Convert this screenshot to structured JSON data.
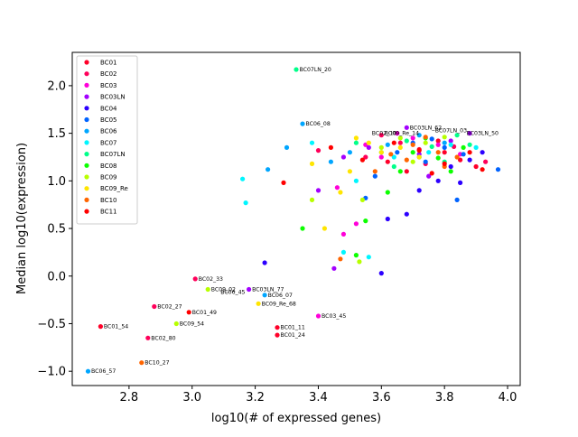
{
  "chart_data": {
    "type": "scatter",
    "title": "",
    "xlabel": "log10(# of expressed genes)",
    "ylabel": "Median log10(expression)",
    "xlim": [
      2.62,
      4.04
    ],
    "ylim": [
      -1.15,
      2.35
    ],
    "xticks": [
      "2.8",
      "3.0",
      "3.2",
      "3.4",
      "3.6",
      "3.8",
      "4.0"
    ],
    "xtick_values": [
      2.8,
      3.0,
      3.2,
      3.4,
      3.6,
      3.8,
      4.0
    ],
    "yticks": [
      "−1.0",
      "−0.5",
      "0.0",
      "0.5",
      "1.0",
      "1.5",
      "2.0"
    ],
    "ytick_values": [
      -1.0,
      -0.5,
      0.0,
      0.5,
      1.0,
      1.5,
      2.0
    ],
    "grid": false,
    "legend_position": "top-left",
    "series": [
      {
        "name": "BC01",
        "color": "#ff0029",
        "points": [
          [
            2.71,
            -0.53
          ],
          [
            3.27,
            -0.54
          ],
          [
            3.27,
            -0.62
          ],
          [
            3.62,
            1.2
          ],
          [
            3.72,
            1.33
          ],
          [
            3.8,
            1.3
          ],
          [
            3.85,
            1.22
          ],
          [
            3.9,
            1.15
          ],
          [
            3.78,
            1.42
          ],
          [
            3.68,
            1.1
          ]
        ]
      },
      {
        "name": "BC02",
        "color": "#ff005a",
        "points": [
          [
            3.01,
            -0.03
          ],
          [
            2.88,
            -0.32
          ],
          [
            2.86,
            -0.65
          ],
          [
            3.4,
            1.32
          ],
          [
            3.55,
            1.25
          ],
          [
            3.66,
            1.4
          ],
          [
            3.83,
            1.36
          ],
          [
            3.74,
            1.18
          ],
          [
            3.93,
            1.2
          ],
          [
            3.6,
            1.48
          ]
        ]
      },
      {
        "name": "BC03",
        "color": "#ff00d9",
        "points": [
          [
            3.4,
            -0.42
          ],
          [
            3.46,
            0.93
          ],
          [
            3.48,
            0.44
          ],
          [
            3.52,
            0.55
          ],
          [
            3.6,
            1.25
          ],
          [
            3.7,
            1.45
          ],
          [
            3.78,
            1.38
          ],
          [
            3.85,
            1.28
          ],
          [
            3.55,
            1.38
          ],
          [
            3.65,
            1.5
          ]
        ]
      },
      {
        "name": "BC03LN",
        "color": "#a300ff",
        "points": [
          [
            3.18,
            -0.14
          ],
          [
            3.4,
            0.9
          ],
          [
            3.48,
            1.25
          ],
          [
            3.56,
            1.35
          ],
          [
            3.68,
            1.56
          ],
          [
            3.72,
            1.28
          ],
          [
            3.82,
            1.42
          ],
          [
            3.88,
            1.5
          ],
          [
            3.45,
            0.08
          ],
          [
            3.75,
            1.05
          ]
        ]
      },
      {
        "name": "BC04",
        "color": "#2c00ff",
        "points": [
          [
            3.23,
            0.14
          ],
          [
            3.6,
            0.03
          ],
          [
            3.62,
            0.6
          ],
          [
            3.68,
            0.65
          ],
          [
            3.72,
            0.9
          ],
          [
            3.78,
            1.0
          ],
          [
            3.82,
            1.15
          ],
          [
            3.88,
            1.22
          ],
          [
            3.92,
            1.3
          ],
          [
            3.85,
            0.98
          ]
        ]
      },
      {
        "name": "BC05",
        "color": "#0063ff",
        "points": [
          [
            3.55,
            0.82
          ],
          [
            3.58,
            1.05
          ],
          [
            3.65,
            1.3
          ],
          [
            3.7,
            1.4
          ],
          [
            3.76,
            1.44
          ],
          [
            3.8,
            1.35
          ],
          [
            3.86,
            1.28
          ],
          [
            3.97,
            1.12
          ],
          [
            3.84,
            0.8
          ],
          [
            3.74,
            1.2
          ]
        ]
      },
      {
        "name": "BC06",
        "color": "#00a6ff",
        "points": [
          [
            2.67,
            -1.0
          ],
          [
            3.23,
            -0.2
          ],
          [
            3.35,
            1.6
          ],
          [
            3.24,
            1.12
          ],
          [
            3.3,
            1.35
          ],
          [
            3.44,
            1.2
          ],
          [
            3.5,
            1.3
          ],
          [
            3.62,
            1.38
          ],
          [
            3.72,
            1.48
          ],
          [
            3.8,
            1.4
          ]
        ]
      },
      {
        "name": "BC07",
        "color": "#00f6ff",
        "points": [
          [
            3.16,
            1.02
          ],
          [
            3.17,
            0.77
          ],
          [
            3.38,
            1.4
          ],
          [
            3.48,
            0.25
          ],
          [
            3.52,
            1.0
          ],
          [
            3.64,
            1.25
          ],
          [
            3.75,
            1.3
          ],
          [
            3.82,
            1.38
          ],
          [
            3.9,
            1.35
          ],
          [
            3.56,
            0.2
          ]
        ]
      },
      {
        "name": "BC07LN",
        "color": "#00ff8a",
        "points": [
          [
            3.33,
            2.17
          ],
          [
            3.52,
            1.4
          ],
          [
            3.6,
            1.3
          ],
          [
            3.68,
            1.42
          ],
          [
            3.76,
            1.36
          ],
          [
            3.84,
            1.48
          ],
          [
            3.88,
            1.38
          ],
          [
            3.72,
            1.25
          ],
          [
            3.8,
            1.2
          ],
          [
            3.64,
            1.15
          ]
        ]
      },
      {
        "name": "BC08",
        "color": "#0cff00",
        "points": [
          [
            3.35,
            0.5
          ],
          [
            3.52,
            0.22
          ],
          [
            3.55,
            0.58
          ],
          [
            3.62,
            0.88
          ],
          [
            3.66,
            1.1
          ],
          [
            3.7,
            1.3
          ],
          [
            3.78,
            1.24
          ],
          [
            3.86,
            1.35
          ],
          [
            3.74,
            1.45
          ],
          [
            3.82,
            1.1
          ]
        ]
      },
      {
        "name": "BC09",
        "color": "#b8ff00",
        "points": [
          [
            2.95,
            -0.5
          ],
          [
            3.05,
            -0.14
          ],
          [
            3.38,
            0.8
          ],
          [
            3.53,
            0.15
          ],
          [
            3.54,
            0.8
          ],
          [
            3.6,
            1.35
          ],
          [
            3.66,
            1.45
          ],
          [
            3.74,
            1.4
          ],
          [
            3.8,
            1.46
          ],
          [
            3.7,
            1.2
          ]
        ]
      },
      {
        "name": "BC09_Re",
        "color": "#ffe500",
        "points": [
          [
            3.21,
            -0.29
          ],
          [
            3.38,
            1.18
          ],
          [
            3.42,
            0.5
          ],
          [
            3.5,
            1.1
          ],
          [
            3.56,
            1.4
          ],
          [
            3.52,
            1.45
          ],
          [
            3.6,
            1.3
          ],
          [
            3.66,
            1.35
          ],
          [
            3.72,
            1.25
          ],
          [
            3.47,
            0.88
          ]
        ]
      },
      {
        "name": "BC10",
        "color": "#ff6500",
        "points": [
          [
            2.84,
            -0.91
          ],
          [
            3.47,
            0.18
          ],
          [
            3.63,
            1.28
          ],
          [
            3.7,
            1.38
          ],
          [
            3.78,
            1.3
          ],
          [
            3.84,
            1.25
          ],
          [
            3.58,
            1.1
          ],
          [
            3.74,
            1.46
          ],
          [
            3.68,
            1.22
          ],
          [
            3.8,
            1.15
          ]
        ]
      },
      {
        "name": "BC11",
        "color": "#ff0000",
        "points": [
          [
            2.99,
            -0.38
          ],
          [
            3.29,
            0.98
          ],
          [
            3.44,
            1.35
          ],
          [
            3.54,
            1.22
          ],
          [
            3.64,
            1.4
          ],
          [
            3.72,
            1.32
          ],
          [
            3.8,
            1.18
          ],
          [
            3.88,
            1.3
          ],
          [
            3.92,
            1.12
          ],
          [
            3.76,
            1.08
          ]
        ]
      }
    ],
    "annotations": [
      {
        "text": "BC07LN_20",
        "x": 3.33,
        "y": 2.17
      },
      {
        "text": "BC06_08",
        "x": 3.35,
        "y": 1.6
      },
      {
        "text": "BC03LN_62",
        "x": 3.68,
        "y": 1.56
      },
      {
        "text": "BC09_Re_14",
        "x": 3.6,
        "y": 1.5
      },
      {
        "text": "BC02_10",
        "x": 3.56,
        "y": 1.5
      },
      {
        "text": "BC07LN_03",
        "x": 3.76,
        "y": 1.53
      },
      {
        "text": "BC03LN_50",
        "x": 3.86,
        "y": 1.5
      },
      {
        "text": "BC02_33",
        "x": 3.01,
        "y": -0.03
      },
      {
        "text": "BC09_02",
        "x": 3.05,
        "y": -0.14
      },
      {
        "text": "BC06_45",
        "x": 3.08,
        "y": -0.17
      },
      {
        "text": "BC03LN_77",
        "x": 3.18,
        "y": -0.14
      },
      {
        "text": "BC06_07",
        "x": 3.23,
        "y": -0.2
      },
      {
        "text": "BC09_Re_68",
        "x": 3.21,
        "y": -0.29
      },
      {
        "text": "BC02_27",
        "x": 2.88,
        "y": -0.32
      },
      {
        "text": "BC01_49",
        "x": 2.99,
        "y": -0.38
      },
      {
        "text": "BC03_45",
        "x": 3.4,
        "y": -0.42
      },
      {
        "text": "BC09_54",
        "x": 2.95,
        "y": -0.5
      },
      {
        "text": "BC01_54",
        "x": 2.71,
        "y": -0.53
      },
      {
        "text": "BC01_11",
        "x": 3.27,
        "y": -0.54
      },
      {
        "text": "BC01_24",
        "x": 3.27,
        "y": -0.62
      },
      {
        "text": "BC02_80",
        "x": 2.86,
        "y": -0.65
      },
      {
        "text": "BC10_27",
        "x": 2.84,
        "y": -0.91
      },
      {
        "text": "BC06_57",
        "x": 2.67,
        "y": -1.0
      }
    ]
  }
}
